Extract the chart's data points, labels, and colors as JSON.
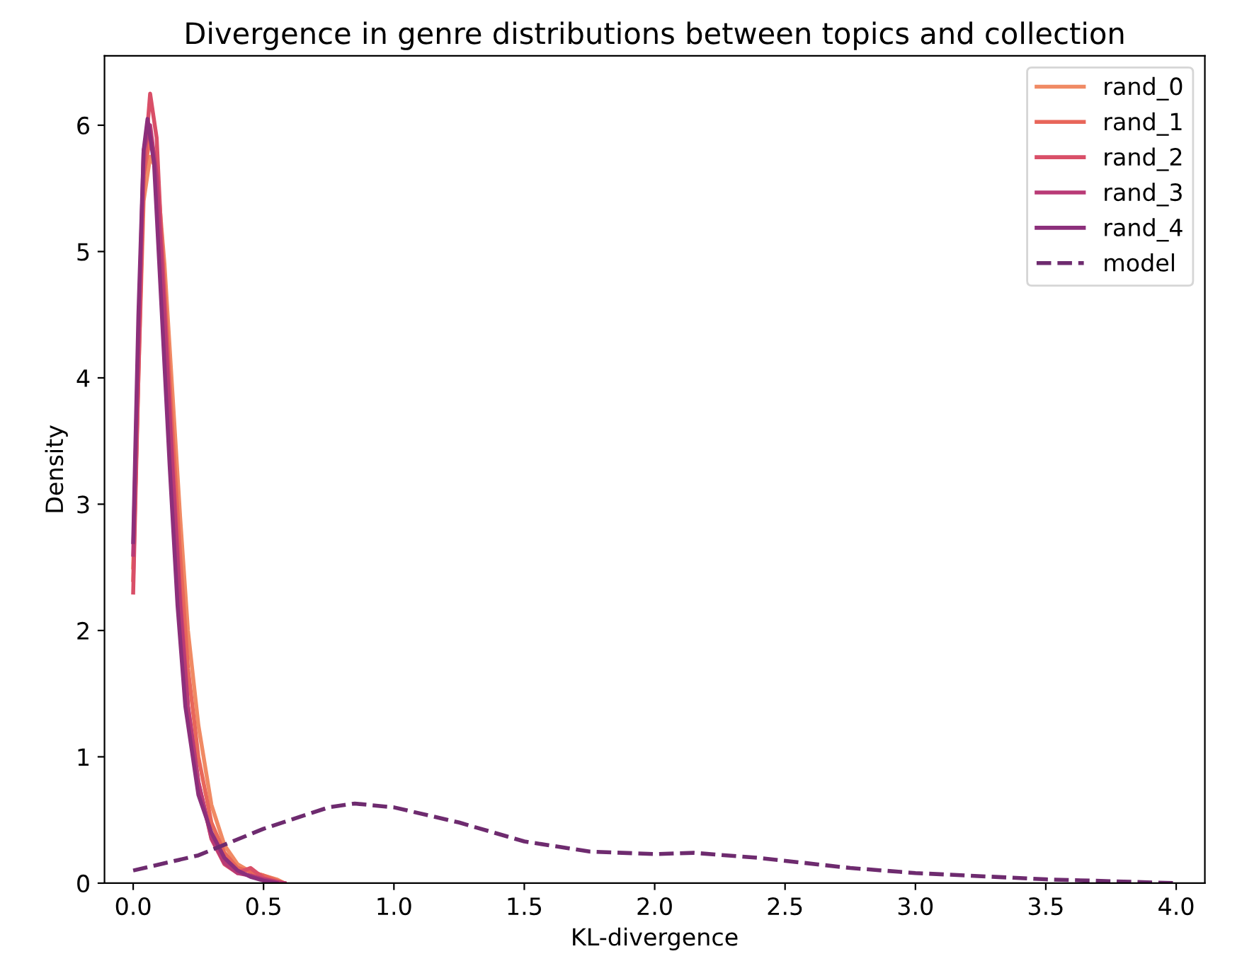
{
  "chart_data": {
    "type": "line",
    "title": "Divergence in genre distributions between topics and collection",
    "xlabel": "KL-divergence",
    "ylabel": "Density",
    "xlim": [
      -0.11,
      4.11
    ],
    "ylim": [
      0,
      6.55
    ],
    "xticks": [
      {
        "value": 0,
        "label": "0.0"
      },
      {
        "value": 0.5,
        "label": "0.5"
      },
      {
        "value": 1,
        "label": "1.0"
      },
      {
        "value": 1.5,
        "label": "1.5"
      },
      {
        "value": 2,
        "label": "2.0"
      },
      {
        "value": 2.5,
        "label": "2.5"
      },
      {
        "value": 3,
        "label": "3.0"
      },
      {
        "value": 3.5,
        "label": "3.5"
      },
      {
        "value": 4,
        "label": "4.0"
      }
    ],
    "yticks": [
      0,
      1,
      2,
      3,
      4,
      5,
      6
    ],
    "grid": false,
    "legend": "top right",
    "line_style": "solid",
    "series": [
      {
        "name": "rand_0",
        "color": "#f08a64",
        "x": [
          0,
          0.02,
          0.04,
          0.065,
          0.09,
          0.12,
          0.15,
          0.18,
          0.21,
          0.25,
          0.3,
          0.35,
          0.4,
          0.45,
          0.5,
          0.55,
          0.58
        ],
        "values": [
          2.5,
          4.0,
          5.4,
          5.75,
          5.65,
          4.9,
          3.9,
          2.9,
          2.0,
          1.25,
          0.62,
          0.3,
          0.15,
          0.09,
          0.06,
          0.03,
          0
        ]
      },
      {
        "name": "rand_1",
        "color": "#e8665a",
        "x": [
          0,
          0.02,
          0.04,
          0.065,
          0.09,
          0.12,
          0.15,
          0.18,
          0.21,
          0.25,
          0.3,
          0.35,
          0.4,
          0.45,
          0.5,
          0.55,
          0.58
        ],
        "values": [
          2.4,
          4.1,
          5.6,
          5.9,
          5.7,
          4.7,
          3.6,
          2.6,
          1.7,
          1.0,
          0.48,
          0.24,
          0.12,
          0.09,
          0.06,
          0.02,
          0
        ]
      },
      {
        "name": "rand_2",
        "color": "#d94f68",
        "x": [
          0,
          0.02,
          0.04,
          0.065,
          0.09,
          0.12,
          0.15,
          0.18,
          0.21,
          0.25,
          0.3,
          0.35,
          0.4,
          0.45,
          0.5,
          0.55,
          0.58
        ],
        "values": [
          2.3,
          4.0,
          5.6,
          6.25,
          5.9,
          4.6,
          3.4,
          2.3,
          1.4,
          0.8,
          0.35,
          0.15,
          0.08,
          0.12,
          0.04,
          0.01,
          0
        ]
      },
      {
        "name": "rand_3",
        "color": "#b93a76",
        "x": [
          0,
          0.02,
          0.04,
          0.065,
          0.09,
          0.12,
          0.15,
          0.18,
          0.21,
          0.25,
          0.3,
          0.35,
          0.4,
          0.45,
          0.5,
          0.55,
          0.58
        ],
        "values": [
          2.6,
          4.3,
          5.8,
          6.0,
          5.6,
          4.5,
          3.3,
          2.2,
          1.4,
          0.8,
          0.36,
          0.16,
          0.08,
          0.06,
          0.03,
          0.01,
          0
        ]
      },
      {
        "name": "rand_4",
        "color": "#8c2f7b",
        "x": [
          0,
          0.02,
          0.04,
          0.055,
          0.08,
          0.11,
          0.14,
          0.17,
          0.2,
          0.25,
          0.3,
          0.35,
          0.4,
          0.45,
          0.5,
          0.55
        ],
        "values": [
          2.7,
          4.5,
          5.8,
          6.05,
          5.7,
          4.5,
          3.3,
          2.2,
          1.4,
          0.7,
          0.4,
          0.2,
          0.1,
          0.05,
          0.02,
          0
        ]
      },
      {
        "name": "model",
        "color": "#6e2b6f",
        "line_style": "dashed",
        "x": [
          0,
          0.25,
          0.5,
          0.75,
          0.85,
          1.0,
          1.25,
          1.5,
          1.75,
          2.0,
          2.15,
          2.4,
          2.75,
          3.0,
          3.5,
          4.0
        ],
        "values": [
          0.1,
          0.22,
          0.43,
          0.6,
          0.63,
          0.6,
          0.48,
          0.33,
          0.25,
          0.23,
          0.24,
          0.2,
          0.12,
          0.08,
          0.03,
          0.0
        ]
      }
    ]
  }
}
